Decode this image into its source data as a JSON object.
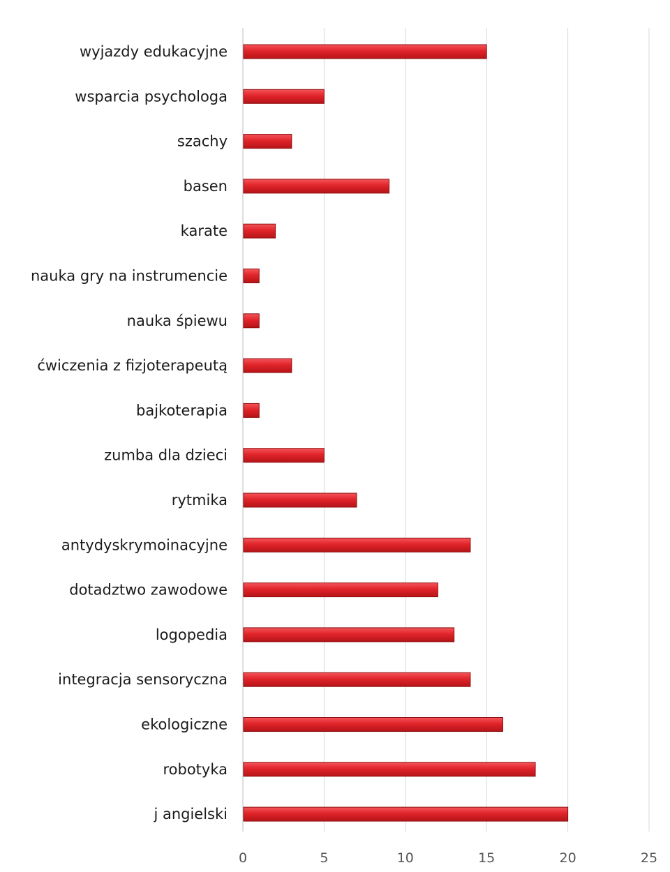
{
  "chart_data": {
    "type": "bar",
    "orientation": "horizontal",
    "categories": [
      "wyjazdy edukacyjne",
      "wsparcia psychologa",
      "szachy",
      "basen",
      "karate",
      "nauka gry na instrumencie",
      "nauka śpiewu",
      "ćwiczenia z fizjoterapeutą",
      "bajkoterapia",
      "zumba dla dzieci",
      "rytmika",
      "antydyskrymoinacyjne",
      "dotadztwo zawodowe",
      "logopedia",
      "integracja sensoryczna",
      "ekologiczne",
      "robotyka",
      "j angielski"
    ],
    "values": [
      15,
      5,
      3,
      9,
      2,
      1,
      1,
      3,
      1,
      5,
      7,
      14,
      12,
      13,
      14,
      16,
      18,
      20
    ],
    "xlim": [
      0,
      25
    ],
    "xticks": [
      "0",
      "5",
      "10",
      "15",
      "20",
      "25"
    ],
    "grid": true,
    "legend": "none",
    "bar_color": "#e0242a",
    "bar_edge_color": "#8e1010"
  }
}
